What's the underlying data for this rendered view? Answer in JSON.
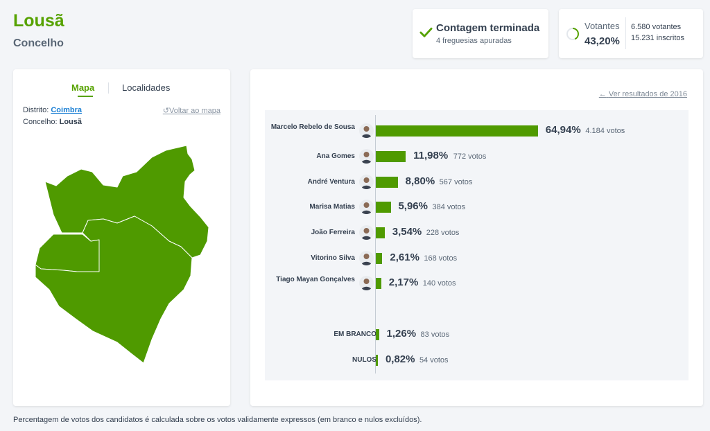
{
  "header": {
    "title": "Lousã",
    "subtitle": "Concelho"
  },
  "status": {
    "title": "Contagem terminada",
    "sub": "4 freguesias apuradas"
  },
  "voters": {
    "label": "Votantes",
    "pct": "43,20%",
    "progress": 0.432,
    "voters": "6.580 votantes",
    "registered": "15.231 inscritos"
  },
  "map": {
    "tab_map": "Mapa",
    "tab_localities": "Localidades",
    "district_label": "Distrito:",
    "district_value": "Coimbra",
    "county_label": "Concelho:",
    "county_value": "Lousã",
    "back_link": "Voltar ao mapa",
    "fill_color": "#4f9a00"
  },
  "results": {
    "prev_link": "Ver resultados de 2016",
    "candidates": [
      {
        "name": "Marcelo Rebelo de Sousa",
        "pct": "64,94%",
        "votes": "4.184 votos",
        "value": 64.94
      },
      {
        "name": "Ana Gomes",
        "pct": "11,98%",
        "votes": "772 votos",
        "value": 11.98
      },
      {
        "name": "André Ventura",
        "pct": "8,80%",
        "votes": "567 votos",
        "value": 8.8
      },
      {
        "name": "Marisa Matias",
        "pct": "5,96%",
        "votes": "384 votos",
        "value": 5.96
      },
      {
        "name": "João Ferreira",
        "pct": "3,54%",
        "votes": "228 votos",
        "value": 3.54
      },
      {
        "name": "Vitorino Silva",
        "pct": "2,61%",
        "votes": "168 votos",
        "value": 2.61
      },
      {
        "name": "Tiago Mayan Gonçalves",
        "pct": "2,17%",
        "votes": "140 votos",
        "value": 2.17
      }
    ],
    "blank": {
      "name": "EM BRANCO",
      "pct": "1,26%",
      "votes": "83 votos",
      "value": 1.26
    },
    "null": {
      "name": "NULOS",
      "pct": "0,82%",
      "votes": "54 votos",
      "value": 0.82
    },
    "bar_color": "#4f9a00"
  },
  "footnote": "Percentagem de votos dos candidatos é calculada sobre os votos validamente expressos (em branco e nulos excluídos)."
}
